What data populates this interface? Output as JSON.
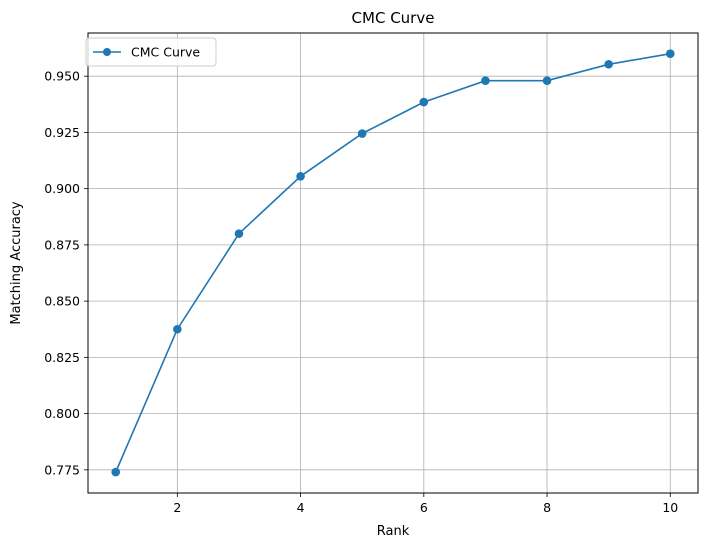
{
  "chart_data": {
    "type": "line",
    "title": "CMC Curve",
    "xlabel": "Rank",
    "ylabel": "Matching Accuracy",
    "x": [
      1,
      2,
      3,
      4,
      5,
      6,
      7,
      8,
      9,
      10
    ],
    "series": [
      {
        "name": "CMC Curve",
        "color": "#1f77b4",
        "marker": "circle",
        "values": [
          0.774,
          0.8375,
          0.88,
          0.9055,
          0.9245,
          0.9385,
          0.948,
          0.948,
          0.9553,
          0.96
        ]
      }
    ],
    "xlim": [
      0.55,
      10.45
    ],
    "ylim": [
      0.7647,
      0.9692
    ],
    "xticks": [
      2,
      4,
      6,
      8,
      10
    ],
    "xtick_labels": [
      "2",
      "4",
      "6",
      "8",
      "10"
    ],
    "yticks": [
      0.775,
      0.8,
      0.825,
      0.85,
      0.875,
      0.9,
      0.925,
      0.95
    ],
    "ytick_labels": [
      "0.775",
      "0.800",
      "0.825",
      "0.850",
      "0.875",
      "0.900",
      "0.925",
      "0.950"
    ],
    "grid": true,
    "legend_position": "top-left"
  }
}
